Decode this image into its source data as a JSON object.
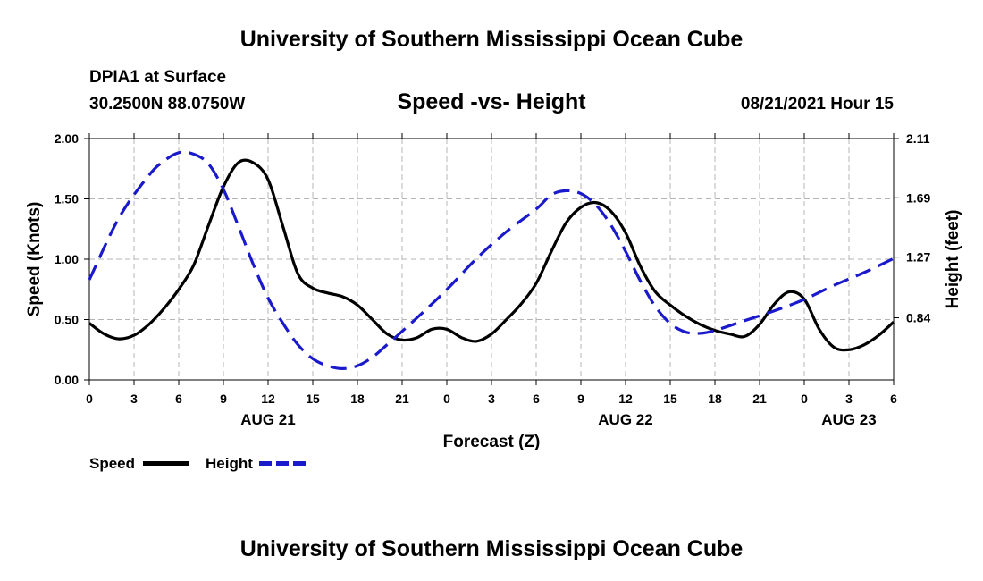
{
  "header": {
    "title_top": "University of Southern Mississippi Ocean Cube",
    "station_name": "DPIA1 at Surface",
    "station_coords": "30.2500N  88.0750W",
    "chart_title": "Speed -vs- Height",
    "datetime": "08/21/2021 Hour 15"
  },
  "footer": {
    "title_bottom": "University of Southern Mississippi Ocean Cube"
  },
  "legend": {
    "speed_label": "Speed",
    "height_label": "Height"
  },
  "colors": {
    "speed": "#000000",
    "height": "#1a1acc",
    "grid": "#b4b4b4"
  },
  "chart_data": {
    "type": "line",
    "xlabel": "Forecast (Z)",
    "ylabel_left": "Speed (Knots)",
    "ylabel_right": "Height (feet)",
    "xlim": [
      0,
      54
    ],
    "ylim_left": [
      0,
      2
    ],
    "ylim_right": [
      0.4,
      2.11
    ],
    "x_ticks": [
      0,
      3,
      6,
      9,
      12,
      15,
      18,
      21,
      24,
      27,
      30,
      33,
      36,
      39,
      42,
      45,
      48,
      51,
      54
    ],
    "x_tick_labels": [
      "0",
      "3",
      "6",
      "9",
      "12",
      "15",
      "18",
      "21",
      "0",
      "3",
      "6",
      "9",
      "12",
      "15",
      "18",
      "21",
      "0",
      "3",
      "6"
    ],
    "day_labels": [
      {
        "x": 12,
        "label": "AUG 21"
      },
      {
        "x": 36,
        "label": "AUG 22"
      },
      {
        "x": 51,
        "label": "AUG 23"
      }
    ],
    "y_left_ticks": [
      0,
      0.5,
      1,
      1.5,
      2
    ],
    "y_left_tick_labels": [
      "0.00",
      "0.50",
      "1.00",
      "1.50",
      "2.00"
    ],
    "y_right_ticks": [
      0.84,
      1.27,
      1.69,
      2.11
    ],
    "y_right_tick_labels": [
      "0.84",
      "1.27",
      "1.69",
      "2.11"
    ],
    "grid": true,
    "series": [
      {
        "name": "Speed",
        "axis": "left",
        "style": "solid",
        "x": [
          0,
          1,
          2,
          3,
          4,
          5,
          6,
          7,
          8,
          9,
          10,
          11,
          12,
          13,
          14,
          15,
          16,
          17,
          18,
          19,
          20,
          21,
          22,
          23,
          24,
          25,
          26,
          27,
          28,
          29,
          30,
          31,
          32,
          33,
          34,
          35,
          36,
          37,
          38,
          39,
          40,
          41,
          42,
          43,
          44,
          45,
          46,
          47,
          48,
          49,
          50,
          51,
          52,
          53,
          54
        ],
        "values": [
          0.47,
          0.38,
          0.34,
          0.37,
          0.46,
          0.59,
          0.75,
          0.95,
          1.28,
          1.6,
          1.8,
          1.8,
          1.66,
          1.27,
          0.88,
          0.76,
          0.72,
          0.69,
          0.62,
          0.5,
          0.38,
          0.33,
          0.35,
          0.42,
          0.42,
          0.35,
          0.32,
          0.38,
          0.5,
          0.63,
          0.8,
          1.06,
          1.3,
          1.43,
          1.47,
          1.4,
          1.22,
          0.94,
          0.73,
          0.62,
          0.53,
          0.46,
          0.41,
          0.38,
          0.36,
          0.46,
          0.63,
          0.73,
          0.67,
          0.42,
          0.27,
          0.25,
          0.29,
          0.37,
          0.48
        ]
      },
      {
        "name": "Height",
        "axis": "right",
        "style": "dashed",
        "x": [
          0,
          2,
          4,
          5,
          6,
          7,
          8,
          9,
          10,
          11,
          12,
          13,
          14,
          15,
          16,
          17,
          18,
          19,
          20,
          22,
          24,
          26,
          28,
          30,
          31,
          32,
          33,
          34,
          35,
          36,
          37,
          38,
          39,
          40,
          41,
          42,
          44,
          46,
          48,
          50,
          52,
          54
        ],
        "values": [
          1.11,
          1.55,
          1.85,
          1.95,
          2.01,
          2.0,
          1.93,
          1.75,
          1.49,
          1.22,
          0.98,
          0.8,
          0.65,
          0.55,
          0.5,
          0.48,
          0.5,
          0.56,
          0.65,
          0.84,
          1.04,
          1.26,
          1.45,
          1.61,
          1.71,
          1.74,
          1.72,
          1.64,
          1.5,
          1.31,
          1.1,
          0.92,
          0.8,
          0.74,
          0.73,
          0.75,
          0.82,
          0.89,
          0.97,
          1.07,
          1.16,
          1.26
        ]
      }
    ]
  }
}
